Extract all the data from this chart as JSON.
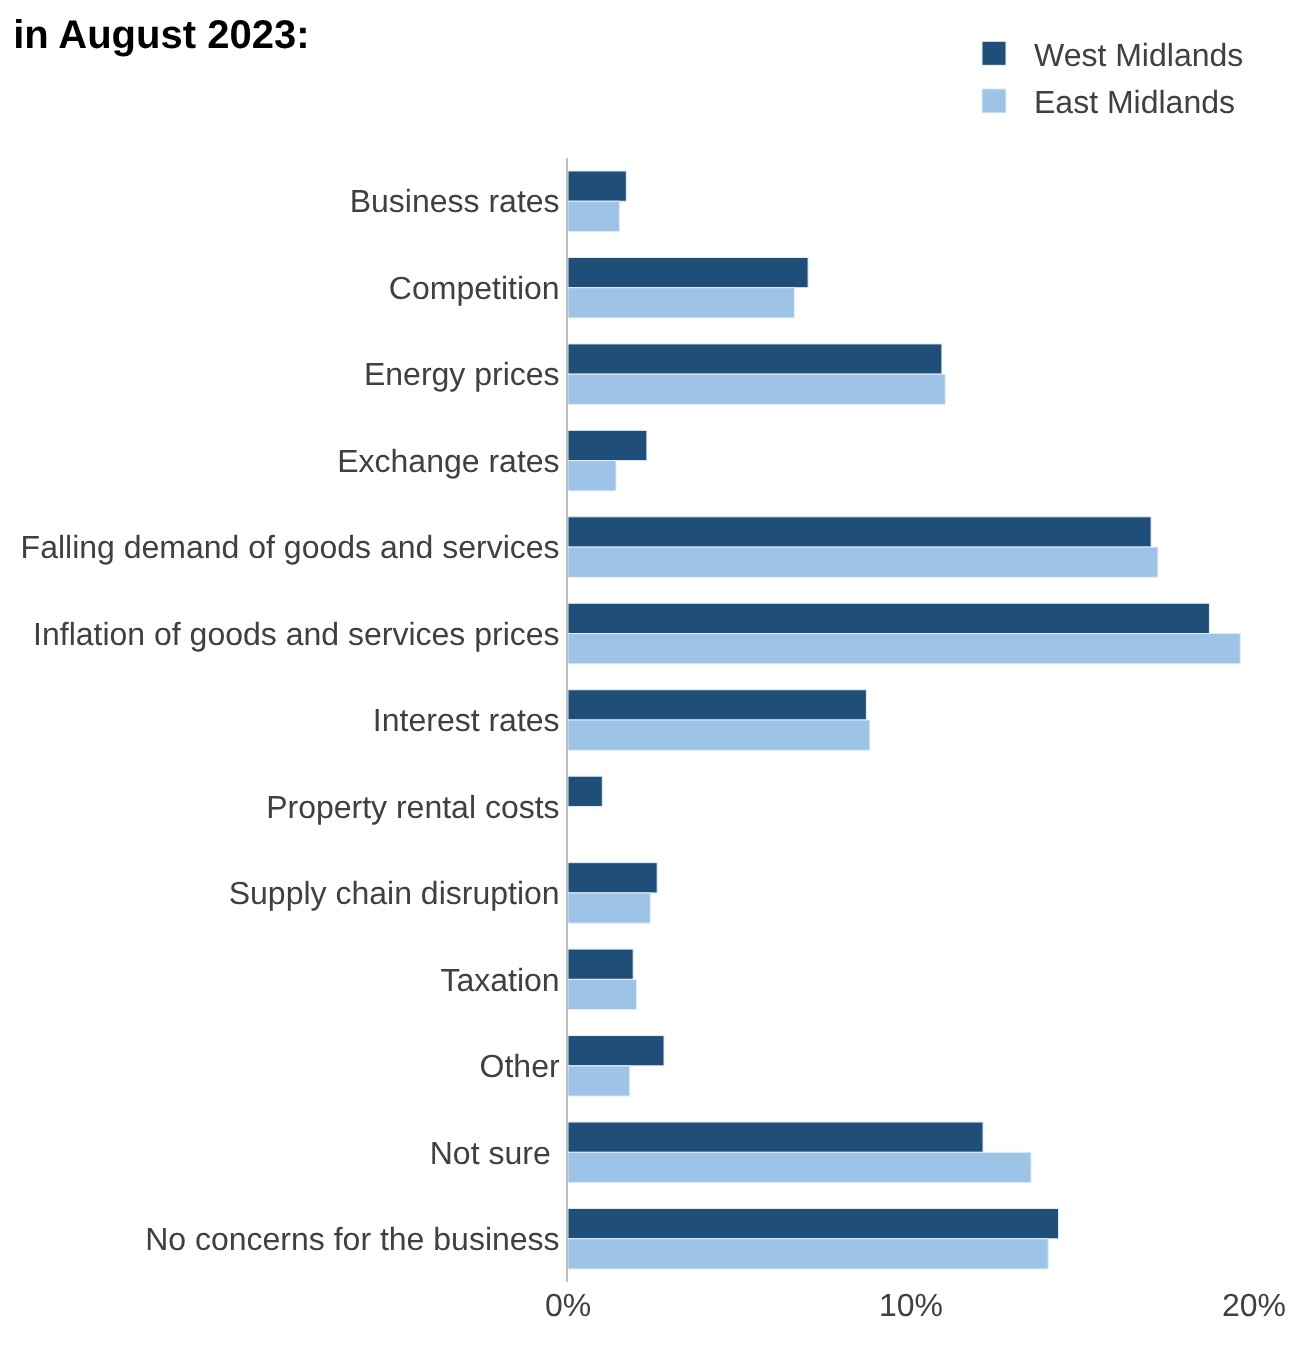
{
  "chart_data": {
    "type": "bar",
    "orientation": "horizontal",
    "title": "in August 2023:",
    "categories": [
      "Business rates",
      "Competition",
      "Energy prices",
      "Exchange rates",
      "Falling demand of goods and services",
      "Inflation of goods and services prices",
      "Interest rates",
      "Property rental costs",
      "Supply chain disruption",
      "Taxation",
      "Other",
      "Not sure ",
      "No concerns for the business"
    ],
    "series": [
      {
        "name": "West Midlands",
        "color": "#1f4e79",
        "values": [
          1.7,
          7.0,
          10.9,
          2.3,
          17.0,
          18.7,
          8.7,
          1.0,
          2.6,
          1.9,
          2.8,
          12.1,
          14.3
        ]
      },
      {
        "name": "East Midlands",
        "color": "#9dc3e6",
        "values": [
          1.5,
          6.6,
          11.0,
          1.4,
          17.2,
          19.6,
          8.8,
          null,
          2.4,
          2.0,
          1.8,
          13.5,
          14.0
        ]
      }
    ],
    "xlim": [
      0,
      20
    ],
    "xticks": [
      {
        "value": 0,
        "label": "0%"
      },
      {
        "value": 10,
        "label": "10%"
      },
      {
        "value": 20,
        "label": "20%"
      }
    ],
    "legend": "top right"
  }
}
